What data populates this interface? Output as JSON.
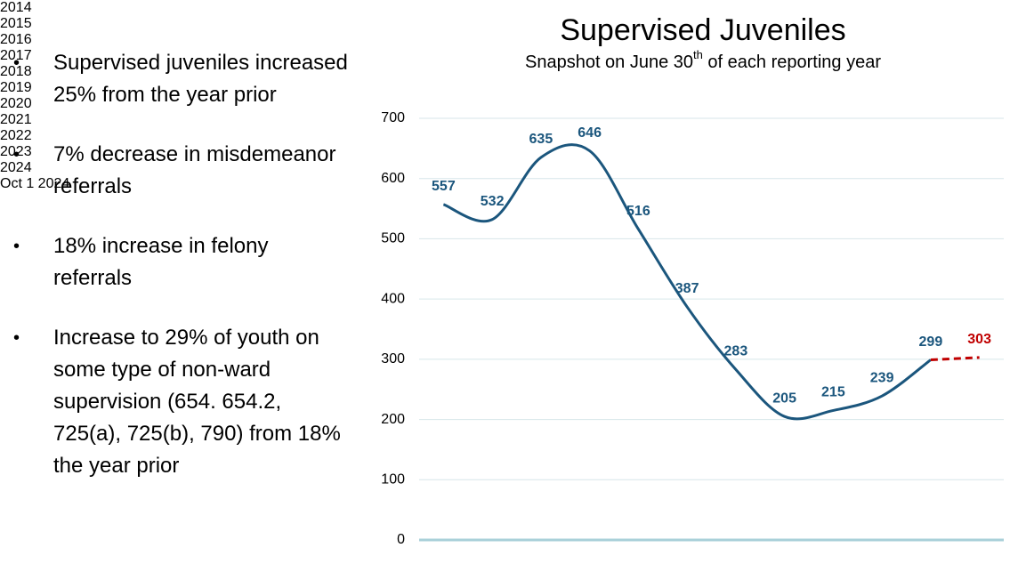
{
  "bullets": [
    "Supervised juveniles increased 25% from the year prior",
    "7% decrease in misdemeanor referrals",
    "18% increase in felony referrals",
    "Increase to 29% of youth on some type of non-ward supervision (654. 654.2, 725(a), 725(b), 790) from 18% the year prior"
  ],
  "chart_data": {
    "type": "line",
    "title": "Supervised Juveniles",
    "subtitle": [
      "Snapshot on June 30",
      "th",
      " of each reporting year"
    ],
    "categories": [
      "2014",
      "2015",
      "2016",
      "2017",
      "2018",
      "2019",
      "2020",
      "2021",
      "2022",
      "2023",
      "2024",
      "Oct 1\n2024"
    ],
    "series": [
      {
        "color": "#1b567d",
        "values": [
          557,
          532,
          635,
          646,
          516,
          387,
          283,
          205,
          215,
          239,
          299,
          null
        ]
      },
      {
        "color": "#c00000",
        "dashed": true,
        "values": [
          null,
          null,
          null,
          null,
          null,
          null,
          null,
          null,
          null,
          null,
          299,
          303
        ]
      }
    ],
    "ylim": [
      0,
      700
    ],
    "yticks": [
      0,
      100,
      200,
      300,
      400,
      500,
      600,
      700
    ],
    "grid": true,
    "smooth": true,
    "data_labels": true
  }
}
